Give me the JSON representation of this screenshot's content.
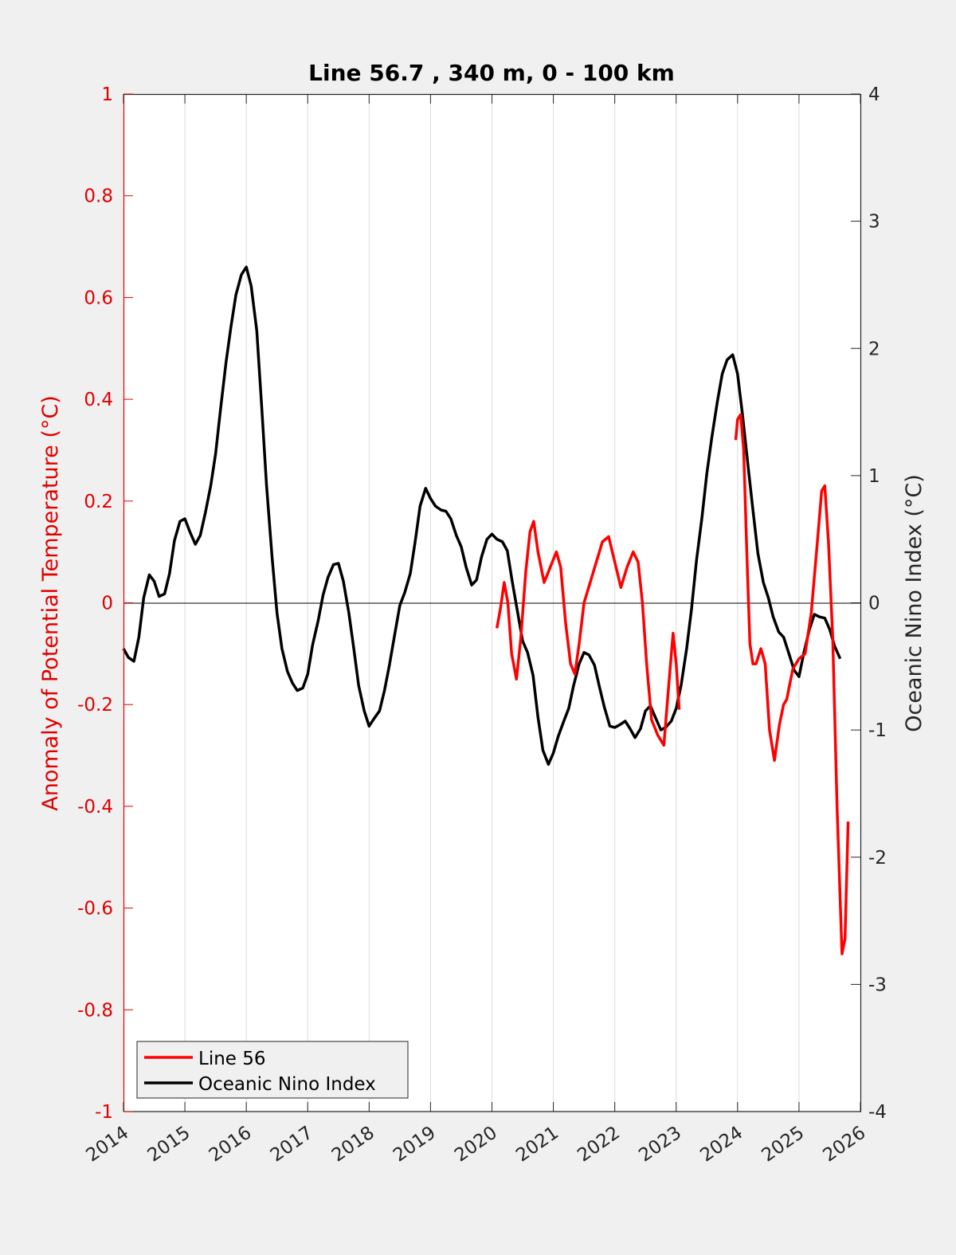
{
  "chart_data": {
    "type": "line",
    "title": "Line 56.7 , 340 m, 0 - 100 km",
    "xlabel": "",
    "ylabel_left": "Anomaly of Potential Temperature (°C)",
    "ylabel_right": "Oceanic Nino Index (°C)",
    "xlim": [
      2014,
      2026
    ],
    "ylim_left": [
      -1,
      1
    ],
    "ylim_right": [
      -4,
      4
    ],
    "x_ticks": [
      "2014",
      "2015",
      "2016",
      "2017",
      "2018",
      "2019",
      "2020",
      "2021",
      "2022",
      "2023",
      "2024",
      "2025",
      "2026"
    ],
    "y_ticks_left": [
      "-1",
      "-0.8",
      "-0.6",
      "-0.4",
      "-0.2",
      "0",
      "0.2",
      "0.4",
      "0.6",
      "0.8",
      "1"
    ],
    "y_ticks_right": [
      "-4",
      "-3",
      "-2",
      "-1",
      "0",
      "1",
      "2",
      "3",
      "4"
    ],
    "grid": "vertical",
    "legend_position": "bottom-left",
    "series": [
      {
        "name": "Line 56",
        "axis": "left",
        "color": "#ff0000",
        "segments": [
          {
            "x": [
              2020.08,
              2020.14,
              2020.2,
              2020.26,
              2020.32,
              2020.4,
              2020.47,
              2020.55,
              2020.62,
              2020.68,
              2020.75,
              2020.85,
              2020.95,
              2021.05,
              2021.12,
              2021.2,
              2021.28,
              2021.35,
              2021.42,
              2021.5,
              2021.6,
              2021.7,
              2021.8,
              2021.9,
              2022.0,
              2022.1,
              2022.2,
              2022.3,
              2022.38,
              2022.45,
              2022.52,
              2022.6,
              2022.7,
              2022.8,
              2022.88,
              2022.95,
              2023.0,
              2023.05
            ],
            "y": [
              -0.05,
              -0.01,
              0.04,
              0.0,
              -0.1,
              -0.15,
              -0.07,
              0.06,
              0.14,
              0.16,
              0.1,
              0.04,
              0.07,
              0.1,
              0.07,
              -0.04,
              -0.12,
              -0.14,
              -0.08,
              0.0,
              0.04,
              0.08,
              0.12,
              0.13,
              0.08,
              0.03,
              0.07,
              0.1,
              0.08,
              0.0,
              -0.12,
              -0.23,
              -0.26,
              -0.28,
              -0.16,
              -0.06,
              -0.12,
              -0.21
            ]
          },
          {
            "x": [
              2023.97,
              2024.0,
              2024.05,
              2024.1,
              2024.15,
              2024.2,
              2024.25,
              2024.3,
              2024.38,
              2024.45,
              2024.52,
              2024.6,
              2024.68,
              2024.75,
              2024.8,
              2024.9,
              2025.0,
              2025.1,
              2025.2,
              2025.3,
              2025.37,
              2025.42,
              2025.48,
              2025.55,
              2025.62,
              2025.7,
              2025.75,
              2025.8
            ],
            "y": [
              0.32,
              0.36,
              0.37,
              0.3,
              0.1,
              -0.08,
              -0.12,
              -0.12,
              -0.09,
              -0.12,
              -0.25,
              -0.31,
              -0.24,
              -0.2,
              -0.19,
              -0.13,
              -0.11,
              -0.1,
              -0.02,
              0.12,
              0.22,
              0.23,
              0.12,
              -0.07,
              -0.4,
              -0.69,
              -0.66,
              -0.43
            ]
          }
        ]
      },
      {
        "name": "Oceanic Nino Index",
        "axis": "right",
        "color": "#000000",
        "segments": [
          {
            "x": [
              2014.0,
              2014.08,
              2014.17,
              2014.25,
              2014.33,
              2014.42,
              2014.5,
              2014.58,
              2014.67,
              2014.75,
              2014.83,
              2014.92,
              2015.0,
              2015.08,
              2015.17,
              2015.25,
              2015.33,
              2015.42,
              2015.5,
              2015.58,
              2015.67,
              2015.75,
              2015.83,
              2015.92,
              2016.0,
              2016.08,
              2016.17,
              2016.25,
              2016.33,
              2016.42,
              2016.5,
              2016.58,
              2016.67,
              2016.75,
              2016.83,
              2016.92,
              2017.0,
              2017.08,
              2017.17,
              2017.25,
              2017.33,
              2017.42,
              2017.5,
              2017.58,
              2017.67,
              2017.75,
              2017.83,
              2017.92,
              2018.0,
              2018.08,
              2018.17,
              2018.25,
              2018.33,
              2018.42,
              2018.5,
              2018.58,
              2018.67,
              2018.75,
              2018.83,
              2018.92,
              2019.0,
              2019.08,
              2019.17,
              2019.25,
              2019.33,
              2019.42,
              2019.5,
              2019.58,
              2019.67,
              2019.75,
              2019.83,
              2019.92,
              2020.0,
              2020.08,
              2020.17,
              2020.25,
              2020.33,
              2020.42,
              2020.5,
              2020.58,
              2020.67,
              2020.75,
              2020.83,
              2020.92,
              2021.0,
              2021.08,
              2021.17,
              2021.25,
              2021.33,
              2021.42,
              2021.5,
              2021.58,
              2021.67,
              2021.75,
              2021.83,
              2021.92,
              2022.0,
              2022.08,
              2022.17,
              2022.25,
              2022.33,
              2022.42,
              2022.5,
              2022.58,
              2022.67,
              2022.75,
              2022.83,
              2022.92,
              2023.0,
              2023.08,
              2023.17,
              2023.25,
              2023.33,
              2023.42,
              2023.5,
              2023.58,
              2023.67,
              2023.75,
              2023.83,
              2023.92,
              2024.0,
              2024.08,
              2024.17,
              2024.25,
              2024.33,
              2024.42,
              2024.5,
              2024.58,
              2024.67,
              2024.75,
              2024.83,
              2024.92,
              2025.0,
              2025.08,
              2025.17,
              2025.25,
              2025.33,
              2025.42,
              2025.5,
              2025.58,
              2025.67
            ],
            "y": [
              -0.36,
              -0.43,
              -0.46,
              -0.27,
              0.04,
              0.22,
              0.17,
              0.05,
              0.07,
              0.23,
              0.49,
              0.64,
              0.66,
              0.56,
              0.46,
              0.53,
              0.7,
              0.92,
              1.17,
              1.52,
              1.89,
              2.17,
              2.42,
              2.58,
              2.64,
              2.49,
              2.14,
              1.55,
              0.92,
              0.36,
              -0.08,
              -0.36,
              -0.54,
              -0.63,
              -0.69,
              -0.67,
              -0.56,
              -0.33,
              -0.14,
              0.06,
              0.2,
              0.3,
              0.31,
              0.17,
              -0.08,
              -0.36,
              -0.65,
              -0.85,
              -0.97,
              -0.91,
              -0.85,
              -0.69,
              -0.49,
              -0.24,
              -0.02,
              0.08,
              0.23,
              0.48,
              0.76,
              0.9,
              0.82,
              0.76,
              0.73,
              0.72,
              0.66,
              0.53,
              0.44,
              0.28,
              0.14,
              0.18,
              0.36,
              0.5,
              0.54,
              0.5,
              0.48,
              0.41,
              0.17,
              -0.08,
              -0.3,
              -0.39,
              -0.57,
              -0.9,
              -1.16,
              -1.27,
              -1.18,
              -1.05,
              -0.93,
              -0.83,
              -0.65,
              -0.48,
              -0.39,
              -0.41,
              -0.49,
              -0.66,
              -0.82,
              -0.97,
              -0.98,
              -0.96,
              -0.93,
              -0.99,
              -1.06,
              -0.99,
              -0.85,
              -0.81,
              -0.91,
              -1.0,
              -0.98,
              -0.93,
              -0.83,
              -0.65,
              -0.36,
              -0.05,
              0.33,
              0.67,
              1.02,
              1.3,
              1.58,
              1.8,
              1.91,
              1.95,
              1.8,
              1.48,
              1.08,
              0.73,
              0.39,
              0.16,
              0.04,
              -0.11,
              -0.23,
              -0.27,
              -0.39,
              -0.53,
              -0.58,
              -0.39,
              -0.21,
              -0.09,
              -0.11,
              -0.12,
              -0.21,
              -0.34,
              -0.44
            ]
          }
        ]
      }
    ]
  }
}
